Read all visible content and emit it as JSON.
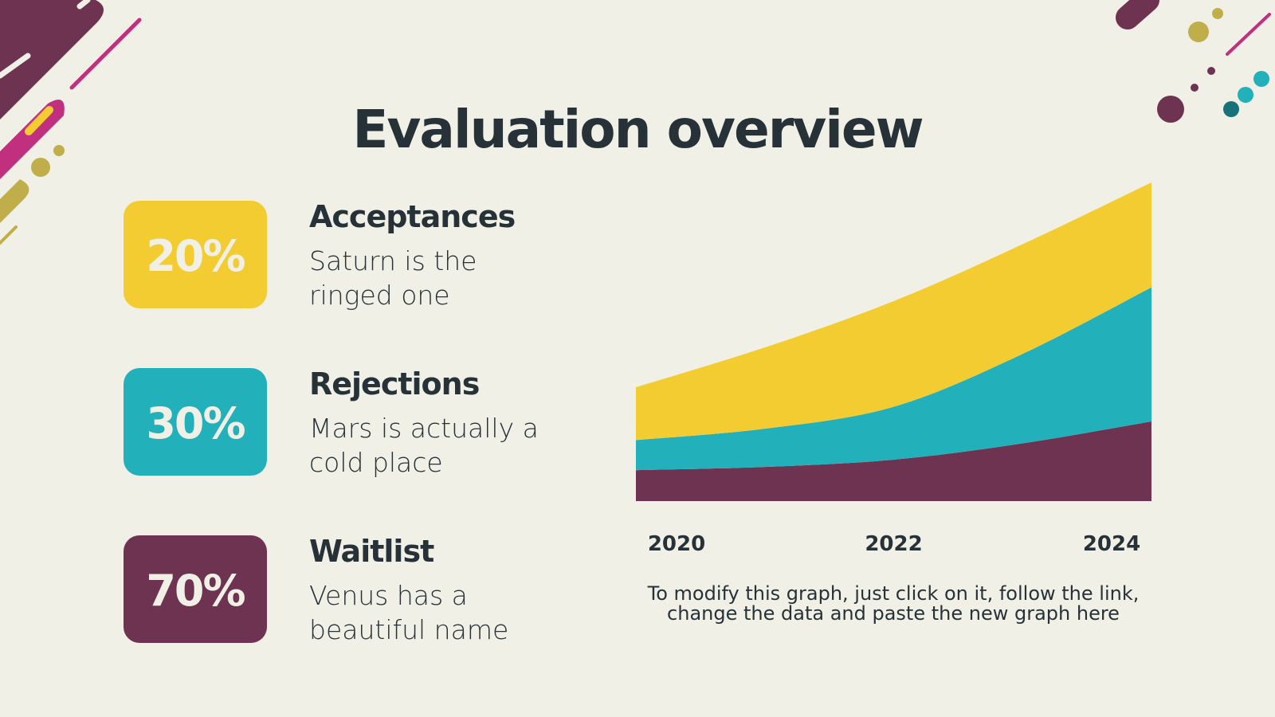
{
  "title": "Evaluation overview",
  "cards": [
    {
      "value": "20%",
      "color": "#f2cc30",
      "title": "Acceptances",
      "description": [
        "Saturn is the",
        "ringed one"
      ]
    },
    {
      "value": "30%",
      "color": "#22b0bb",
      "title": "Rejections",
      "description": [
        "Mars is actually a",
        "cold place"
      ]
    },
    {
      "value": "70%",
      "color": "#6e3350",
      "title": "Waitlist",
      "description": [
        "Venus has a",
        "beautiful name"
      ]
    }
  ],
  "chart_data": {
    "type": "area",
    "stacked": true,
    "categories": [
      "2020",
      null,
      "2022",
      null,
      "2024"
    ],
    "series": [
      {
        "color": "#6e3350",
        "values": [
          3.8,
          4.2,
          5.1,
          7.1,
          9.8
        ]
      },
      {
        "color": "#22b0bb",
        "values": [
          3.7,
          4.7,
          6.5,
          11,
          16.5
        ]
      },
      {
        "color": "#f2cc30",
        "values": [
          6.5,
          10,
          13,
          13.5,
          12.9
        ]
      }
    ],
    "note": [
      "To modify this graph, just click on it, follow the link,",
      "change the data and paste the new graph here"
    ]
  }
}
